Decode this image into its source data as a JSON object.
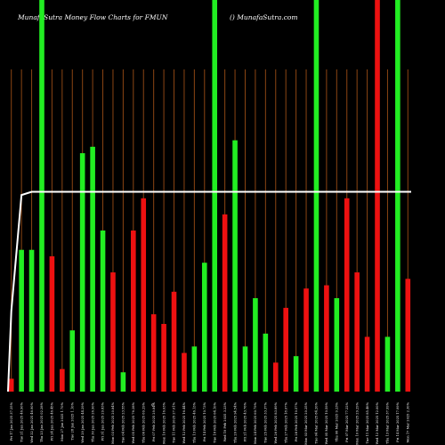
{
  "header": {
    "title": "MunafaSutra  Money Flow  Charts for FMUN",
    "site": "() MunafaSutra.com"
  },
  "chart_data": {
    "type": "bar",
    "title": "MunafaSutra  Money Flow  Charts for FMUN",
    "ylim": [
      0,
      100
    ],
    "x_marker": "C",
    "colors": {
      "up": "#22ee22",
      "down": "#ee1111",
      "grid": "#8b4513",
      "line": "#ffffff"
    },
    "bars": [
      {
        "date": "2025-01-17",
        "label": "Fri 17 Jan 2025 37.25%",
        "value": 4,
        "dir": "down"
      },
      {
        "date": "2025-01-21",
        "label": "Tue 21 Jan 2025 46.90%",
        "value": 44,
        "dir": "up"
      },
      {
        "date": "2025-01-22",
        "label": "Wed 22 Jan 2025 46.90%",
        "value": 44,
        "dir": "up"
      },
      {
        "date": "2025-01-23",
        "label": "Thu 23 Jan 2025 02.28%",
        "value": 100,
        "dir": "up"
      },
      {
        "date": "2025-01-24",
        "label": "Fri 24 Jan 2025 46.45%",
        "value": 42,
        "dir": "down"
      },
      {
        "date": "2025-01-27",
        "label": "Mon 27 Jan 2025 1.70%",
        "value": 7,
        "dir": "down"
      },
      {
        "date": "2025-01-28",
        "label": "Tue 28 Jan 2025 1.10%",
        "value": 19,
        "dir": "up"
      },
      {
        "date": "2025-01-29",
        "label": "Wed 29 Jan 2025 44.29%",
        "value": 74,
        "dir": "up"
      },
      {
        "date": "2025-01-30",
        "label": "Thu 30 Jan 2025 26.90%",
        "value": 76,
        "dir": "up"
      },
      {
        "date": "2025-01-31",
        "label": "Fri 31 Jan 2025 29.83%",
        "value": 50,
        "dir": "up"
      },
      {
        "date": "2025-02-03",
        "label": "Mon 03 Feb 2025 20.84%",
        "value": 37,
        "dir": "down"
      },
      {
        "date": "2025-02-04",
        "label": "Tue 04 Feb 2025 23.55%",
        "value": 6,
        "dir": "up"
      },
      {
        "date": "2025-02-05",
        "label": "Wed 05 Feb 2025 76.28%",
        "value": 50,
        "dir": "down"
      },
      {
        "date": "2025-02-06",
        "label": "Thu 06 Feb 2025 69.29%",
        "value": 60,
        "dir": "down"
      },
      {
        "date": "2025-02-07",
        "label": "Fri 07 Feb 2025 29.84%",
        "value": 24,
        "dir": "down"
      },
      {
        "date": "2025-02-10",
        "label": "Mon 10 Feb 2025 16.03%",
        "value": 21,
        "dir": "down"
      },
      {
        "date": "2025-02-11",
        "label": "Tue 11 Feb 2025 27.01%",
        "value": 31,
        "dir": "down"
      },
      {
        "date": "2025-02-12",
        "label": "Wed 12 Feb 2025 16.44%",
        "value": 12,
        "dir": "down"
      },
      {
        "date": "2025-02-13",
        "label": "Thu 13 Feb 2025 46.13%",
        "value": 14,
        "dir": "up"
      },
      {
        "date": "2025-02-14",
        "label": "Fri 14 Feb 2025 10.73%",
        "value": 40,
        "dir": "up"
      },
      {
        "date": "2025-02-18",
        "label": "Tue 18 Feb 2025 64.10%",
        "value": 100,
        "dir": "up"
      },
      {
        "date": "2025-02-19",
        "label": "Wed 19 Feb 2025 3.23%",
        "value": 55,
        "dir": "down"
      },
      {
        "date": "2025-02-20",
        "label": "Thu 20 Feb 2025 94.54%",
        "value": 78,
        "dir": "up"
      },
      {
        "date": "2025-02-21",
        "label": "Fri 21 Feb 2025 43.76%",
        "value": 14,
        "dir": "up"
      },
      {
        "date": "2025-02-24",
        "label": "Mon 24 Feb 2025 60.79%",
        "value": 29,
        "dir": "up"
      },
      {
        "date": "2025-02-25",
        "label": "Tue 25 Feb 2025 33.37%",
        "value": 18,
        "dir": "up"
      },
      {
        "date": "2025-02-26",
        "label": "Wed 26 Feb 2025 83.89%",
        "value": 9,
        "dir": "down"
      },
      {
        "date": "2025-02-27",
        "label": "Thu 27 Feb 2025 18.07%",
        "value": 26,
        "dir": "down"
      },
      {
        "date": "2025-02-28",
        "label": "Fri 28 Feb 2025 10.57%",
        "value": 11,
        "dir": "up"
      },
      {
        "date": "2025-03-03",
        "label": "Mon 03 Mar 2025 20.25%",
        "value": 32,
        "dir": "down"
      },
      {
        "date": "2025-03-04",
        "label": "Tue 04 Mar 2025 84.20%",
        "value": 100,
        "dir": "up"
      },
      {
        "date": "2025-03-05",
        "label": "Wed 05 Mar 2025 10.59%",
        "value": 33,
        "dir": "down"
      },
      {
        "date": "2025-03-06",
        "label": "Thu 06 Mar 2025 9.23%",
        "value": 29,
        "dir": "up"
      },
      {
        "date": "2025-03-07",
        "label": "Fri 07 Mar 2025 77.22%",
        "value": 60,
        "dir": "down"
      },
      {
        "date": "2025-03-10",
        "label": "Mon 10 Mar 2025 29.29%",
        "value": 37,
        "dir": "down"
      },
      {
        "date": "2025-03-11",
        "label": "Tue 11 Mar 2025 85.46%",
        "value": 17,
        "dir": "down"
      },
      {
        "date": "2025-03-12",
        "label": "Wed 12 Mar 2025 12.00%",
        "value": 100,
        "dir": "down"
      },
      {
        "date": "2025-03-13",
        "label": "Thu 13 Mar 2025 37.99%",
        "value": 17,
        "dir": "up"
      },
      {
        "date": "2025-03-14",
        "label": "Fri 14 Mar 2025 17.99%",
        "value": 100,
        "dir": "up"
      },
      {
        "date": "2025-03-17",
        "label": "Mon 17 Mar 2025 2.30%",
        "value": 35,
        "dir": "down"
      }
    ],
    "line": [
      25,
      61,
      62,
      62,
      62,
      62,
      62,
      62,
      62,
      62,
      62,
      62,
      62,
      62,
      62,
      62,
      62,
      62,
      62,
      62,
      62,
      62,
      62,
      62,
      62,
      62,
      62,
      62,
      62,
      62,
      62,
      62,
      62,
      62,
      62,
      62,
      62,
      62,
      62,
      62
    ]
  }
}
